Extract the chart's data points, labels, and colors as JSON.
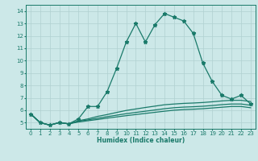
{
  "xlabel": "Humidex (Indice chaleur)",
  "bg_color": "#cce8e8",
  "grid_color": "#b0d0d0",
  "line_color": "#1a7a6a",
  "xlim": [
    -0.5,
    23.5
  ],
  "ylim": [
    4.5,
    14.5
  ],
  "yticks": [
    5,
    6,
    7,
    8,
    9,
    10,
    11,
    12,
    13,
    14
  ],
  "xticks": [
    0,
    1,
    2,
    3,
    4,
    5,
    6,
    7,
    8,
    9,
    10,
    11,
    12,
    13,
    14,
    15,
    16,
    17,
    18,
    19,
    20,
    21,
    22,
    23
  ],
  "line1_x": [
    0,
    1,
    2,
    3,
    4,
    5,
    6,
    7,
    8,
    9,
    10,
    11,
    12,
    13,
    14,
    15,
    16,
    17,
    18,
    19,
    20,
    21,
    22,
    23
  ],
  "line1_y": [
    5.7,
    5.0,
    4.8,
    5.0,
    4.9,
    5.3,
    6.3,
    6.3,
    7.5,
    9.4,
    11.5,
    13.0,
    11.5,
    12.9,
    13.8,
    13.5,
    13.2,
    12.2,
    9.8,
    8.3,
    7.2,
    6.9,
    7.2,
    6.5
  ],
  "line2_x": [
    0,
    1,
    2,
    3,
    4,
    5,
    6,
    7,
    8,
    9,
    10,
    11,
    12,
    13,
    14,
    15,
    16,
    17,
    18,
    19,
    20,
    21,
    22,
    23
  ],
  "line2_y": [
    5.7,
    5.0,
    4.8,
    5.0,
    4.9,
    5.15,
    5.3,
    5.5,
    5.65,
    5.82,
    5.98,
    6.1,
    6.22,
    6.33,
    6.44,
    6.5,
    6.55,
    6.58,
    6.62,
    6.68,
    6.75,
    6.8,
    6.8,
    6.7
  ],
  "line3_x": [
    0,
    1,
    2,
    3,
    4,
    5,
    6,
    7,
    8,
    9,
    10,
    11,
    12,
    13,
    14,
    15,
    16,
    17,
    18,
    19,
    20,
    21,
    22,
    23
  ],
  "line3_y": [
    5.7,
    5.0,
    4.8,
    5.0,
    4.9,
    5.1,
    5.22,
    5.35,
    5.48,
    5.6,
    5.72,
    5.82,
    5.92,
    6.02,
    6.12,
    6.2,
    6.25,
    6.28,
    6.32,
    6.38,
    6.45,
    6.5,
    6.5,
    6.4
  ],
  "line4_x": [
    0,
    1,
    2,
    3,
    4,
    5,
    6,
    7,
    8,
    9,
    10,
    11,
    12,
    13,
    14,
    15,
    16,
    17,
    18,
    19,
    20,
    21,
    22,
    23
  ],
  "line4_y": [
    5.7,
    5.0,
    4.8,
    5.0,
    4.9,
    5.05,
    5.15,
    5.25,
    5.36,
    5.46,
    5.56,
    5.65,
    5.74,
    5.83,
    5.92,
    6.0,
    6.05,
    6.08,
    6.12,
    6.18,
    6.24,
    6.3,
    6.3,
    6.2
  ],
  "marker": "*",
  "markersize": 3.5,
  "linewidth": 0.9
}
